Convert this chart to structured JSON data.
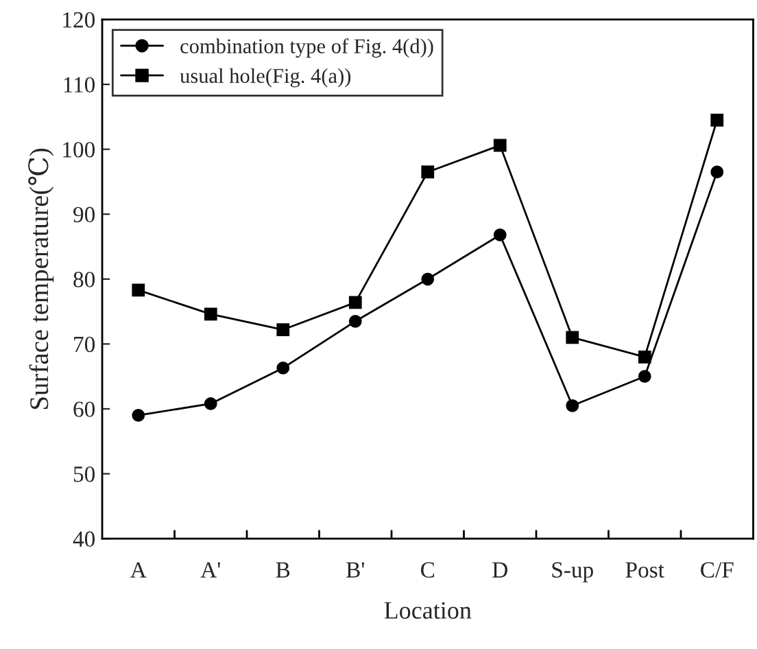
{
  "chart_data": {
    "type": "line",
    "xlabel": "Location",
    "ylabel": "Surface temperature(℃)",
    "categories": [
      "A",
      "A'",
      "B",
      "B'",
      "C",
      "D",
      "S-up",
      "Post",
      "C/F"
    ],
    "series": [
      {
        "name": "combination type of Fig. 4(d))",
        "color": "#000000",
        "marker": "circle",
        "values": [
          59,
          60.8,
          66.3,
          73.5,
          80,
          86.8,
          60.5,
          65,
          96.5
        ]
      },
      {
        "name": "usual hole(Fig. 4(a))",
        "color": "#000000",
        "marker": "square",
        "values": [
          78.3,
          74.6,
          72.2,
          76.4,
          96.5,
          100.6,
          71,
          68,
          104.5
        ]
      }
    ],
    "ylim": [
      40,
      120
    ],
    "yticks": [
      40,
      50,
      60,
      70,
      80,
      90,
      100,
      110,
      120
    ],
    "grid": false,
    "legend": "top left",
    "line_style": "solid"
  }
}
